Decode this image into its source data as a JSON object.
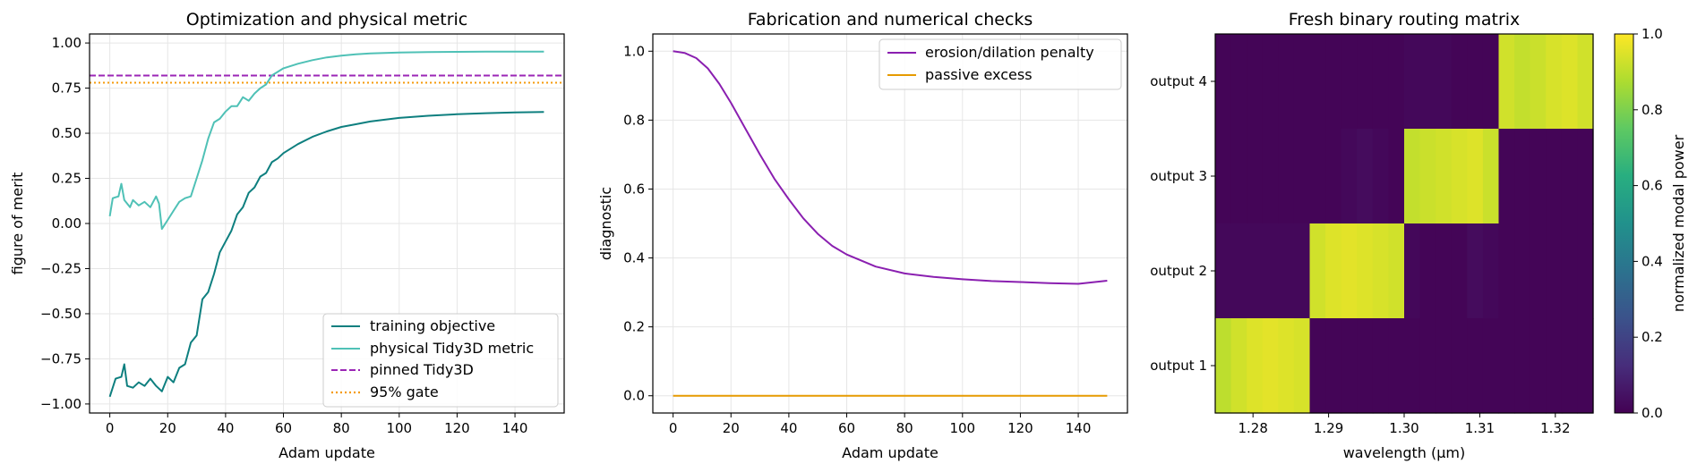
{
  "chart_data": [
    {
      "type": "line",
      "title": "Optimization and physical metric",
      "xlabel": "Adam update",
      "ylabel": "figure of merit",
      "xlim": [
        -7,
        157
      ],
      "ylim": [
        -1.05,
        1.05
      ],
      "xticks": [
        0,
        20,
        40,
        60,
        80,
        100,
        120,
        140
      ],
      "yticks": [
        -1.0,
        -0.75,
        -0.5,
        -0.25,
        0.0,
        0.25,
        0.5,
        0.75,
        1.0
      ],
      "ytick_labels": [
        "−1.00",
        "−0.75",
        "−0.50",
        "−0.25",
        "0.00",
        "0.25",
        "0.50",
        "0.75",
        "1.00"
      ],
      "grid": true,
      "legend_position": "lower right",
      "series": [
        {
          "name": "training objective",
          "color": "#0e7f7f",
          "style": "solid",
          "points": [
            [
              0,
              -0.96
            ],
            [
              2,
              -0.86
            ],
            [
              4,
              -0.85
            ],
            [
              5,
              -0.78
            ],
            [
              6,
              -0.9
            ],
            [
              8,
              -0.91
            ],
            [
              10,
              -0.88
            ],
            [
              12,
              -0.9
            ],
            [
              14,
              -0.86
            ],
            [
              16,
              -0.9
            ],
            [
              18,
              -0.93
            ],
            [
              20,
              -0.85
            ],
            [
              22,
              -0.88
            ],
            [
              24,
              -0.8
            ],
            [
              26,
              -0.78
            ],
            [
              28,
              -0.66
            ],
            [
              30,
              -0.62
            ],
            [
              32,
              -0.42
            ],
            [
              34,
              -0.38
            ],
            [
              36,
              -0.28
            ],
            [
              38,
              -0.16
            ],
            [
              40,
              -0.1
            ],
            [
              42,
              -0.04
            ],
            [
              44,
              0.05
            ],
            [
              46,
              0.09
            ],
            [
              48,
              0.17
            ],
            [
              50,
              0.2
            ],
            [
              52,
              0.26
            ],
            [
              54,
              0.28
            ],
            [
              56,
              0.34
            ],
            [
              58,
              0.36
            ],
            [
              60,
              0.39
            ],
            [
              65,
              0.44
            ],
            [
              70,
              0.48
            ],
            [
              75,
              0.51
            ],
            [
              80,
              0.535
            ],
            [
              85,
              0.55
            ],
            [
              90,
              0.565
            ],
            [
              95,
              0.575
            ],
            [
              100,
              0.585
            ],
            [
              110,
              0.597
            ],
            [
              120,
              0.605
            ],
            [
              130,
              0.611
            ],
            [
              140,
              0.615
            ],
            [
              150,
              0.618
            ]
          ]
        },
        {
          "name": "physical Tidy3D metric",
          "color": "#4fc1b6",
          "style": "solid",
          "points": [
            [
              0,
              0.04
            ],
            [
              1,
              0.14
            ],
            [
              3,
              0.15
            ],
            [
              4,
              0.22
            ],
            [
              5,
              0.13
            ],
            [
              7,
              0.09
            ],
            [
              8,
              0.13
            ],
            [
              10,
              0.1
            ],
            [
              12,
              0.12
            ],
            [
              14,
              0.09
            ],
            [
              16,
              0.15
            ],
            [
              17,
              0.11
            ],
            [
              18,
              -0.03
            ],
            [
              20,
              0.02
            ],
            [
              22,
              0.07
            ],
            [
              24,
              0.12
            ],
            [
              26,
              0.14
            ],
            [
              28,
              0.15
            ],
            [
              30,
              0.25
            ],
            [
              32,
              0.35
            ],
            [
              34,
              0.47
            ],
            [
              36,
              0.56
            ],
            [
              38,
              0.58
            ],
            [
              40,
              0.62
            ],
            [
              42,
              0.65
            ],
            [
              44,
              0.65
            ],
            [
              46,
              0.7
            ],
            [
              48,
              0.68
            ],
            [
              50,
              0.72
            ],
            [
              52,
              0.75
            ],
            [
              54,
              0.77
            ],
            [
              56,
              0.82
            ],
            [
              58,
              0.84
            ],
            [
              60,
              0.86
            ],
            [
              65,
              0.885
            ],
            [
              70,
              0.905
            ],
            [
              75,
              0.92
            ],
            [
              80,
              0.93
            ],
            [
              85,
              0.937
            ],
            [
              90,
              0.942
            ],
            [
              100,
              0.947
            ],
            [
              110,
              0.95
            ],
            [
              120,
              0.951
            ],
            [
              130,
              0.952
            ],
            [
              140,
              0.952
            ],
            [
              150,
              0.952
            ]
          ]
        },
        {
          "name": "pinned Tidy3D",
          "color": "#9b26b6",
          "style": "dashed",
          "hline": 0.82
        },
        {
          "name": "95% gate",
          "color": "#f59b0c",
          "style": "dotted",
          "hline": 0.78
        }
      ]
    },
    {
      "type": "line",
      "title": "Fabrication and numerical checks",
      "xlabel": "Adam update",
      "ylabel": "diagnostic",
      "xlim": [
        -7,
        157
      ],
      "ylim": [
        -0.05,
        1.05
      ],
      "xticks": [
        0,
        20,
        40,
        60,
        80,
        100,
        120,
        140
      ],
      "yticks": [
        0.0,
        0.2,
        0.4,
        0.6,
        0.8,
        1.0
      ],
      "ytick_labels": [
        "0.0",
        "0.2",
        "0.4",
        "0.6",
        "0.8",
        "1.0"
      ],
      "grid": true,
      "legend_position": "upper right",
      "series": [
        {
          "name": "erosion/dilation penalty",
          "color": "#8a1fb0",
          "style": "solid",
          "points": [
            [
              0,
              1.0
            ],
            [
              4,
              0.995
            ],
            [
              8,
              0.98
            ],
            [
              12,
              0.95
            ],
            [
              16,
              0.905
            ],
            [
              20,
              0.85
            ],
            [
              25,
              0.775
            ],
            [
              30,
              0.7
            ],
            [
              35,
              0.63
            ],
            [
              40,
              0.57
            ],
            [
              45,
              0.515
            ],
            [
              50,
              0.47
            ],
            [
              55,
              0.435
            ],
            [
              60,
              0.41
            ],
            [
              70,
              0.375
            ],
            [
              80,
              0.355
            ],
            [
              90,
              0.345
            ],
            [
              100,
              0.338
            ],
            [
              110,
              0.333
            ],
            [
              120,
              0.33
            ],
            [
              130,
              0.327
            ],
            [
              140,
              0.325
            ],
            [
              150,
              0.334
            ]
          ]
        },
        {
          "name": "passive excess",
          "color": "#e69a00",
          "style": "solid",
          "points": [
            [
              0,
              0.0
            ],
            [
              150,
              0.0
            ]
          ]
        }
      ]
    },
    {
      "type": "heatmap",
      "title": "Fresh binary routing matrix",
      "xlabel": "wavelength (µm)",
      "ylabel": "",
      "colorbar_label": "normalized modal power",
      "colorbar_ticks": [
        "0.0",
        "0.2",
        "0.4",
        "0.6",
        "0.8",
        "1.0"
      ],
      "xticks": [
        "1.28",
        "1.29",
        "1.30",
        "1.31",
        "1.32"
      ],
      "xtick_values": [
        1.28,
        1.29,
        1.3,
        1.31,
        1.32
      ],
      "x_range": [
        1.275,
        1.325
      ],
      "rows": [
        "output 4",
        "output 3",
        "output 2",
        "output 1"
      ],
      "columns": 24,
      "values": [
        [
          0.01,
          0.01,
          0.01,
          0.01,
          0.01,
          0.01,
          0.01,
          0.01,
          0.01,
          0.01,
          0.01,
          0.01,
          0.02,
          0.02,
          0.02,
          0.01,
          0.01,
          0.01,
          0.93,
          0.91,
          0.92,
          0.94,
          0.95,
          0.93
        ],
        [
          0.01,
          0.01,
          0.01,
          0.01,
          0.01,
          0.01,
          0.01,
          0.01,
          0.02,
          0.03,
          0.02,
          0.01,
          0.91,
          0.92,
          0.93,
          0.94,
          0.95,
          0.92,
          0.01,
          0.01,
          0.01,
          0.01,
          0.01,
          0.01
        ],
        [
          0.02,
          0.02,
          0.02,
          0.02,
          0.02,
          0.02,
          0.93,
          0.95,
          0.96,
          0.95,
          0.94,
          0.93,
          0.02,
          0.01,
          0.01,
          0.01,
          0.03,
          0.02,
          0.01,
          0.01,
          0.01,
          0.01,
          0.01,
          0.01
        ],
        [
          0.9,
          0.93,
          0.95,
          0.96,
          0.95,
          0.94,
          0.01,
          0.01,
          0.01,
          0.01,
          0.01,
          0.01,
          0.01,
          0.01,
          0.01,
          0.01,
          0.01,
          0.01,
          0.01,
          0.01,
          0.01,
          0.01,
          0.01,
          0.01
        ]
      ]
    }
  ]
}
